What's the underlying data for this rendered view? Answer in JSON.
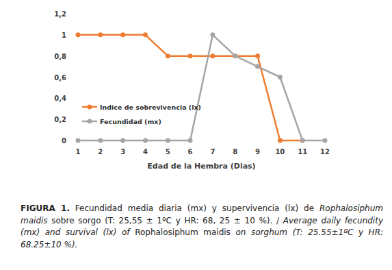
{
  "chart_data": {
    "type": "line",
    "x_label": "Edad de la Hembra (Dias)",
    "categories": [
      "1",
      "2",
      "3",
      "4",
      "5",
      "6",
      "7",
      "8",
      "9",
      "10",
      "11",
      "12"
    ],
    "series": [
      {
        "name": "Indice de sobrevivencia (lx)",
        "color": "#ed7d31",
        "marker": "circle",
        "values": [
          1,
          1,
          1,
          1,
          0.8,
          0.8,
          0.8,
          0.8,
          0.8,
          0,
          0,
          null
        ]
      },
      {
        "name": "Fecundidad (mx)",
        "color": "#a5a5a5",
        "marker": "circle",
        "values": [
          0,
          0,
          0,
          0,
          0,
          0,
          1,
          0.8,
          0.7,
          0.6,
          0,
          0
        ]
      }
    ],
    "ylim": [
      0,
      1.2
    ],
    "yticks": [
      0,
      {
        "value": 0.2,
        "label": "0,2"
      },
      {
        "value": 0.4,
        "label": "0,4"
      },
      {
        "value": 0.6,
        "label": "0,6"
      },
      {
        "value": 0.8,
        "label": "0,8"
      },
      1,
      {
        "value": 1.2,
        "label": "1,2"
      }
    ],
    "grid": false,
    "legend": "left",
    "caption": [
      "FIGURA 1.",
      " Fecundidad media diaria (mx) y supervivencia (lx) de ",
      "Rophalosiphum maidis",
      " sobre sorgo (T: 25,55 ± 1ºC y HR: 68, 25 ± 10 %). / ",
      "Average daily fecundity (mx) and survival (lx) of ",
      "Rophalosiphum maidis",
      " on sorghum (T: 25.55±1ºC y HR: 68.25±10 %)."
    ]
  }
}
